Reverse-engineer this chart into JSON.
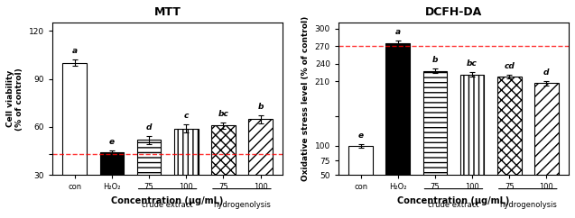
{
  "left_title": "MTT",
  "left_ylabel": "Cell viability\n(% of control)",
  "left_xlabel": "Concentration (μg/mL)",
  "left_ylim": [
    30,
    125
  ],
  "left_yticks": [
    30,
    43,
    60,
    90,
    120
  ],
  "left_ytick_labels": [
    "30",
    "",
    "60",
    "90",
    "120"
  ],
  "left_hline": 43,
  "left_bars": [
    100,
    44,
    52,
    59,
    61,
    65
  ],
  "left_errors": [
    2.0,
    1.5,
    2.5,
    2.5,
    2.0,
    2.5
  ],
  "left_labels": [
    "a",
    "e",
    "d",
    "c",
    "bc",
    "b"
  ],
  "left_colors": [
    "white",
    "black",
    "horizontal",
    "vertical",
    "crosshatch",
    "diagonal"
  ],
  "left_xtick_labels": [
    "con",
    "H₂O₂",
    "75",
    "100",
    "75",
    "100"
  ],
  "left_group_labels": [
    "crude extract",
    "hydrogenolysis"
  ],
  "right_title": "DCFH-DA",
  "right_ylabel": "Oxidative stress level (% of control)",
  "right_xlabel": "Concentration (μg/mL)",
  "right_ylim": [
    50,
    310
  ],
  "right_yticks": [
    50,
    75,
    100,
    150,
    210,
    240,
    270,
    300
  ],
  "right_ytick_labels": [
    "50",
    "75",
    "100",
    "",
    "210",
    "240",
    "270",
    "300"
  ],
  "right_hline": 270,
  "right_bars": [
    100,
    275,
    228,
    222,
    218,
    207
  ],
  "right_errors": [
    3.0,
    4.0,
    4.0,
    3.5,
    3.0,
    3.5
  ],
  "right_labels": [
    "e",
    "a",
    "b",
    "bc",
    "cd",
    "d"
  ],
  "right_colors": [
    "white",
    "black",
    "horizontal",
    "vertical",
    "crosshatch",
    "diagonal"
  ],
  "right_xtick_labels": [
    "con",
    "H₂O₂",
    "75",
    "100",
    "75",
    "100"
  ],
  "right_group_labels": [
    "crude extract",
    "hydrogenolysis"
  ]
}
